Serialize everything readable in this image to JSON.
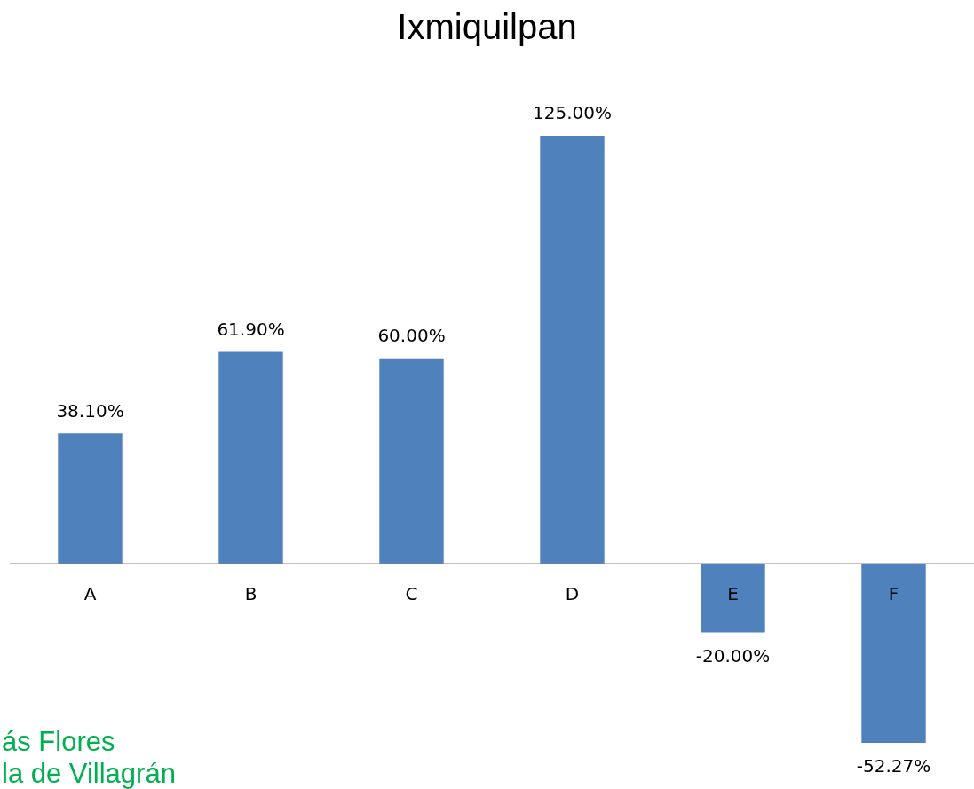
{
  "chart_data": {
    "type": "bar",
    "title": "Ixmiquilpan",
    "categories": [
      "A",
      "B",
      "C",
      "D",
      "E",
      "F"
    ],
    "values": [
      38.1,
      61.9,
      60,
      125,
      -20,
      -52.27
    ],
    "value_labels": [
      "38.10%",
      "61.90%",
      "60.00%",
      "125.00%",
      "-20.00%",
      "-52.27%"
    ],
    "color": "#4f81bd",
    "annotations": [
      "ás Flores",
      "la de Villagrán"
    ]
  }
}
